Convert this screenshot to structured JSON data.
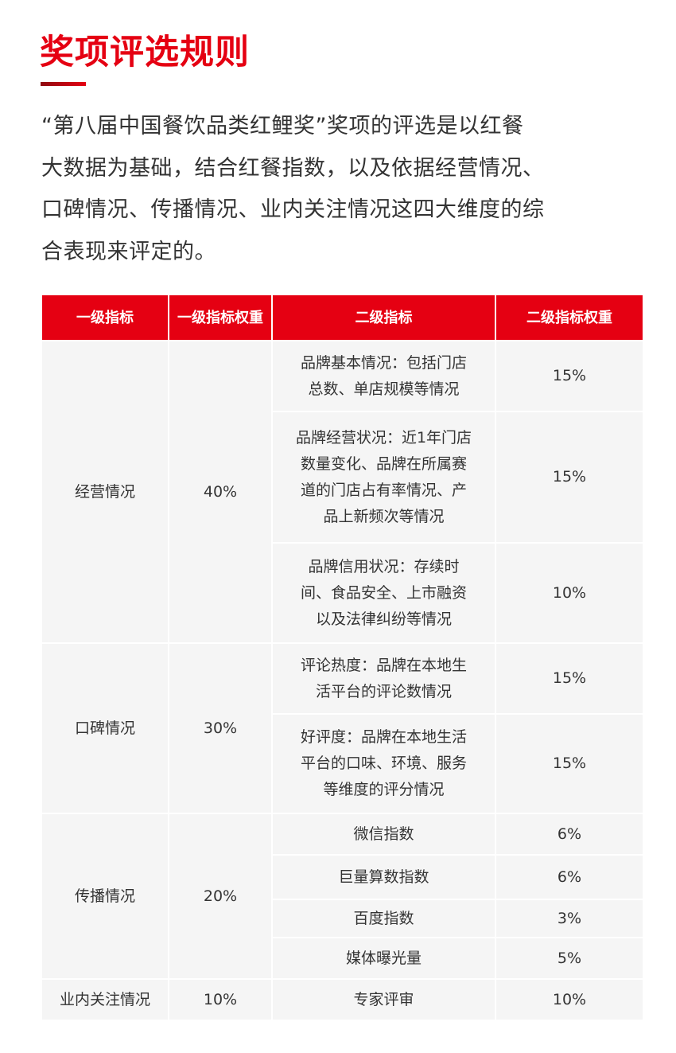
{
  "title": "奖项评选规则",
  "intro": "“第八届中国餐饮品类红鲤奖”奖项的评选是以红餐\n大数据为基础，结合红餐指数，以及依据经营情况、\n口碑情况、传播情况、业内关注情况这四大维度的综\n合表现来评定的。",
  "colors": {
    "accent": "#e50012",
    "cell_bg": "#f5f5f5"
  },
  "table": {
    "headers": [
      "一级指标",
      "一级指标权重",
      "二级指标",
      "二级指标权重"
    ],
    "groups": [
      {
        "name": "经营情况",
        "weight": "40%",
        "items": [
          {
            "name": "品牌基本情况：包括门店\n总数、单店规模等情况",
            "weight": "15%"
          },
          {
            "name": "品牌经营状况：近1年门店\n数量变化、品牌在所属赛\n道的门店占有率情况、产\n品上新频次等情况",
            "weight": "15%"
          },
          {
            "name": "品牌信用状况：存续时\n间、食品安全、上市融资\n以及法律纠纷等情况",
            "weight": "10%"
          }
        ]
      },
      {
        "name": "口碑情况",
        "weight": "30%",
        "items": [
          {
            "name": "评论热度：品牌在本地生\n活平台的评论数情况",
            "weight": "15%"
          },
          {
            "name": "好评度：品牌在本地生活\n平台的口味、环境、服务\n等维度的评分情况",
            "weight": "15%"
          }
        ]
      },
      {
        "name": "传播情况",
        "weight": "20%",
        "items": [
          {
            "name": "微信指数",
            "weight": "6%"
          },
          {
            "name": "巨量算数指数",
            "weight": "6%"
          },
          {
            "name": "百度指数",
            "weight": "3%"
          },
          {
            "name": "媒体曝光量",
            "weight": "5%"
          }
        ]
      },
      {
        "name": "业内关注情况",
        "weight": "10%",
        "items": [
          {
            "name": "专家评审",
            "weight": "10%"
          }
        ]
      }
    ]
  }
}
